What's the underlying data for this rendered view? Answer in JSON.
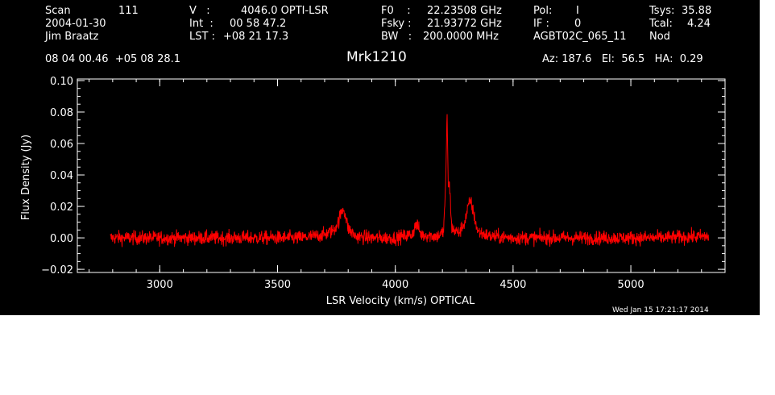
{
  "header": {
    "scan_label": "Scan",
    "scan_value": "111",
    "date": "2004-01-30",
    "observer": "Jim Braatz",
    "v_label": "V   :",
    "v_value": "4046.0 OPTI-LSR",
    "int_label": "Int  :",
    "int_value": "00 58 47.2",
    "lst_label": "LST :",
    "lst_value": "+08 21 17.3",
    "f0_label": "F0    :",
    "f0_value": "22.23508 GHz",
    "fsky_label": "Fsky :",
    "fsky_value": "21.93772 GHz",
    "bw_label": "BW   :",
    "bw_value": "200.0000 MHz",
    "pol_label": "Pol:",
    "pol_value": "I",
    "if_label": "IF :",
    "if_value": "0",
    "project": "AGBT02C_065_11",
    "tsys_label": "Tsys:",
    "tsys_value": "35.88",
    "tcal_label": "Tcal:",
    "tcal_value": "4.24",
    "mode": "Nod",
    "coords": "08 04 00.46  +05 08 28.1",
    "source": "Mrk1210",
    "pointing": "Az: 187.6   El:  56.5   HA:  0.29"
  },
  "footer": {
    "timestamp": "Wed Jan 15 17:21:17 2014"
  },
  "colors": {
    "background": "#000000",
    "axes": "#ffffff",
    "spectrum": "#ff0000"
  },
  "chart_data": {
    "type": "line",
    "title": "Mrk1210",
    "xlabel": "LSR Velocity (km/s) OPTICAL",
    "ylabel": "Flux Density (Jy)",
    "xlim": [
      2650,
      5400
    ],
    "ylim": [
      -0.022,
      0.101
    ],
    "xticks": [
      3000,
      3500,
      4000,
      4500,
      5000
    ],
    "yticks": [
      -0.02,
      0.0,
      0.02,
      0.04,
      0.06,
      0.08,
      0.1
    ],
    "xtick_labels": [
      "3000",
      "3500",
      "4000",
      "4500",
      "5000"
    ],
    "ytick_labels": [
      "−0.02",
      "0.00",
      "0.02",
      "0.04",
      "0.06",
      "0.08",
      "0.10"
    ],
    "grid": false,
    "series": [
      {
        "color": "#ff0000",
        "baseline_noise_rms": 0.0022,
        "x": [
          2790,
          3000,
          3200,
          3400,
          3600,
          3700,
          3740,
          3760,
          3770,
          3780,
          3790,
          3800,
          3830,
          3900,
          4000,
          4070,
          4090,
          4110,
          4180,
          4205,
          4215,
          4220,
          4225,
          4230,
          4240,
          4270,
          4295,
          4310,
          4320,
          4330,
          4350,
          4400,
          4500,
          4700,
          4900,
          5100,
          5330
        ],
        "y": [
          0.0,
          0.0,
          0.0,
          0.0,
          0.0,
          0.002,
          0.005,
          0.011,
          0.016,
          0.019,
          0.013,
          0.006,
          0.001,
          0.0,
          0.0,
          0.002,
          0.009,
          0.002,
          0.001,
          0.004,
          0.04,
          0.08,
          0.032,
          0.034,
          0.006,
          0.003,
          0.01,
          0.02,
          0.024,
          0.017,
          0.004,
          0.001,
          0.0,
          0.0,
          0.0,
          0.0,
          0.001
        ]
      }
    ]
  }
}
